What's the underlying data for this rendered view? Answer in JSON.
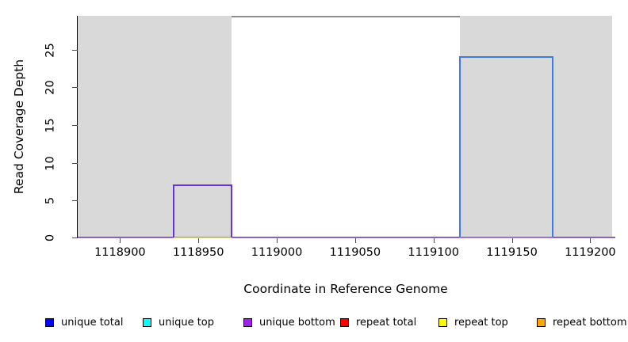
{
  "figure": {
    "x_axis_label": "Coordinate in Reference Genome",
    "y_axis_label": "Read Coverage Depth"
  },
  "chart_data": {
    "type": "area",
    "title": "",
    "xlabel": "Coordinate in Reference Genome",
    "ylabel": "Read Coverage Depth",
    "xlim": [
      1118873,
      1119216
    ],
    "ylim": [
      0,
      29.5
    ],
    "x_ticks": [
      "1118900",
      "1118950",
      "1119000",
      "1119050",
      "1119100",
      "1119150",
      "1119200"
    ],
    "x_tick_values": [
      1118900,
      1118950,
      1119000,
      1119050,
      1119100,
      1119150,
      1119200
    ],
    "y_ticks": [
      "0",
      "5",
      "10",
      "15",
      "20",
      "25"
    ],
    "y_tick_values": [
      0,
      5,
      10,
      15,
      20,
      25
    ],
    "grid": false,
    "legend_position": "bottom",
    "repeat_regions": [
      {
        "x_start": 1118873,
        "x_end": 1118971
      },
      {
        "x_start": 1119117,
        "x_end": 1119214
      }
    ],
    "clipped_top_segment": {
      "x_start": 1118971,
      "x_end": 1119117,
      "note": "gray line at top of plot between repeat regions"
    },
    "coverage_boxes": [
      {
        "series": "unique bottom",
        "x_start": 1118934,
        "x_end": 1118971,
        "depth": 7,
        "stroke": "#6633dd"
      },
      {
        "series": "unique total",
        "x_start": 1119117,
        "x_end": 1119176,
        "depth": 24,
        "stroke": "#3e7be8"
      }
    ],
    "baseline_segments": [
      {
        "series": "unique top",
        "x_start": 1118934,
        "x_end": 1118971,
        "depth": 0,
        "color": "#5cb85c",
        "under_color": "#ede8a0"
      },
      {
        "series": "repeat total",
        "x_start": 1119117,
        "x_end": 1119176,
        "depth": 0,
        "color": "#e04545",
        "under_color": "#b388e8"
      }
    ],
    "baseline_depth": 0
  },
  "colors": {
    "region_fill": "#d9d9d9",
    "clipped_line": "#8c8c8c",
    "baseline_blue": "#3d3df0",
    "baseline_purple": "#b388e8",
    "axis": "#000000"
  },
  "legend": {
    "items": [
      {
        "label": "unique total",
        "color": "#0000ff"
      },
      {
        "label": "unique top",
        "color": "#00ffff"
      },
      {
        "label": "unique bottom",
        "color": "#a020f0"
      },
      {
        "label": "repeat total",
        "color": "#ff0000"
      },
      {
        "label": "repeat top",
        "color": "#ffff00"
      },
      {
        "label": "repeat bottom",
        "color": "#ffa500"
      }
    ]
  }
}
